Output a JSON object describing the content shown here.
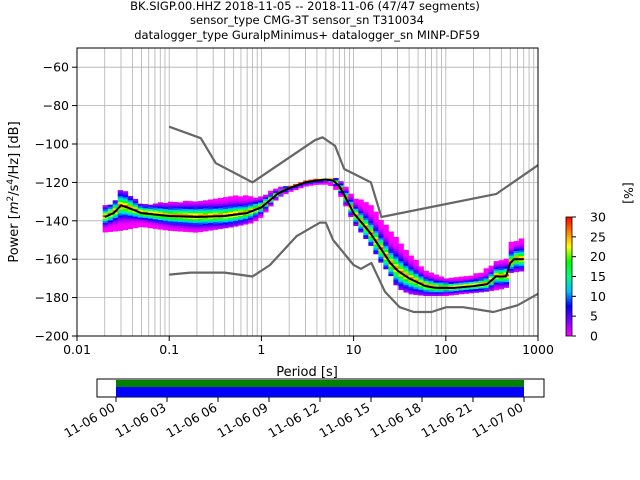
{
  "chart_data": {
    "type": "heatmap",
    "subtype": "probabilistic power spectral density",
    "title_lines": [
      "BK.SIGP.00.HHZ   2018-11-05 -- 2018-11-06  (47/47 segments)",
      "sensor_type CMG-3T sensor_sn T310034",
      "datalogger_type GuralpMinimus+ datalogger_sn MINP-DF59"
    ],
    "xlabel": "Period [s]",
    "ylabel": "Power [m²/s⁴/Hz] [dB]",
    "ylabel_parts": {
      "pre": "Power [",
      "m": "m",
      "sup2": "2",
      "mid": "/s",
      "sup4": "4",
      "post": "/Hz] [dB]"
    },
    "x_scale": "log",
    "xlim": [
      0.01,
      1000
    ],
    "ylim": [
      -200,
      -50
    ],
    "grid": true,
    "x_ticks": [
      0.01,
      0.1,
      1,
      10,
      100,
      1000
    ],
    "x_tick_labels": [
      "0.01",
      "0.1",
      "1",
      "10",
      "100",
      "1000"
    ],
    "y_ticks": [
      -60,
      -80,
      -100,
      -120,
      -140,
      -160,
      -180,
      -200
    ],
    "y_tick_labels": [
      "−60",
      "−80",
      "−100",
      "−120",
      "−140",
      "−160",
      "−180",
      "−200"
    ],
    "colorbar": {
      "label": "[%]",
      "range": [
        0,
        30
      ],
      "ticks": [
        "0",
        "5",
        "10",
        "15",
        "20",
        "25",
        "30"
      ],
      "colormap": [
        "#ff00ff",
        "#8000ff",
        "#0000ff",
        "#00bfff",
        "#00ff80",
        "#00ff00",
        "#ffff00",
        "#ff8000",
        "#ff0000"
      ]
    },
    "series": [
      {
        "name": "",
        "role": "noise model high",
        "color": "#666666",
        "points": [
          [
            0.1,
            -91
          ],
          [
            0.22,
            -97
          ],
          [
            0.32,
            -110
          ],
          [
            0.8,
            -120
          ],
          [
            3.8,
            -98
          ],
          [
            4.6,
            -96.5
          ],
          [
            6.3,
            -101
          ],
          [
            7.9,
            -113
          ],
          [
            15.4,
            -120
          ],
          [
            20,
            -138
          ],
          [
            354,
            -126
          ],
          [
            1000,
            -111
          ]
        ]
      },
      {
        "name": "",
        "role": "noise model low",
        "color": "#666666",
        "points": [
          [
            0.1,
            -168
          ],
          [
            0.17,
            -167
          ],
          [
            0.4,
            -167
          ],
          [
            0.8,
            -169
          ],
          [
            1.24,
            -163
          ],
          [
            2.4,
            -148
          ],
          [
            4.3,
            -141
          ],
          [
            5,
            -141
          ],
          [
            6,
            -150
          ],
          [
            10,
            -163
          ],
          [
            12,
            -165
          ],
          [
            15.6,
            -162
          ],
          [
            21.9,
            -177
          ],
          [
            31.6,
            -185
          ],
          [
            45,
            -187.5
          ],
          [
            70,
            -187.5
          ],
          [
            101,
            -185
          ],
          [
            154,
            -185
          ],
          [
            328,
            -187.5
          ],
          [
            600,
            -184
          ],
          [
            1000,
            -178
          ]
        ]
      },
      {
        "name": "",
        "role": "mode",
        "color": "#000000",
        "points": [
          [
            0.02,
            -138
          ],
          [
            0.025,
            -136
          ],
          [
            0.03,
            -132
          ],
          [
            0.035,
            -133
          ],
          [
            0.05,
            -136
          ],
          [
            0.1,
            -137.5
          ],
          [
            0.2,
            -138
          ],
          [
            0.4,
            -137.5
          ],
          [
            0.7,
            -136
          ],
          [
            1.0,
            -133
          ],
          [
            1.5,
            -126
          ],
          [
            2,
            -123
          ],
          [
            3,
            -120
          ],
          [
            4,
            -119
          ],
          [
            5,
            -118.5
          ],
          [
            6,
            -119
          ],
          [
            7,
            -122
          ],
          [
            8,
            -127
          ],
          [
            10,
            -136
          ],
          [
            15,
            -146
          ],
          [
            20,
            -155
          ],
          [
            25,
            -162
          ],
          [
            30,
            -166
          ],
          [
            40,
            -170
          ],
          [
            60,
            -174
          ],
          [
            80,
            -175
          ],
          [
            120,
            -175
          ],
          [
            200,
            -174
          ],
          [
            280,
            -173
          ],
          [
            350,
            -169
          ],
          [
            450,
            -169
          ],
          [
            500,
            -162
          ],
          [
            550,
            -160
          ],
          [
            700,
            -160
          ]
        ]
      }
    ],
    "density_envelope": {
      "upper": [
        [
          0.019,
          -133
        ],
        [
          0.025,
          -131
        ],
        [
          0.03,
          -124
        ],
        [
          0.035,
          -126
        ],
        [
          0.05,
          -132
        ],
        [
          0.1,
          -131
        ],
        [
          0.2,
          -130
        ],
        [
          0.3,
          -129
        ],
        [
          0.5,
          -127
        ],
        [
          0.8,
          -128
        ],
        [
          1.0,
          -128
        ],
        [
          1.5,
          -123
        ],
        [
          2,
          -122
        ],
        [
          3,
          -119
        ],
        [
          4,
          -118
        ],
        [
          5,
          -118
        ],
        [
          6,
          -118
        ],
        [
          7,
          -119
        ],
        [
          8,
          -122
        ],
        [
          10,
          -128
        ],
        [
          15,
          -132
        ],
        [
          18,
          -137
        ],
        [
          20,
          -140
        ],
        [
          30,
          -150
        ],
        [
          40,
          -158
        ],
        [
          60,
          -166
        ],
        [
          100,
          -170
        ],
        [
          150,
          -170
        ],
        [
          250,
          -167
        ],
        [
          350,
          -162
        ],
        [
          450,
          -160
        ],
        [
          500,
          -152
        ],
        [
          700,
          -149
        ]
      ],
      "lower": [
        [
          0.019,
          -146
        ],
        [
          0.03,
          -145
        ],
        [
          0.05,
          -143
        ],
        [
          0.1,
          -145
        ],
        [
          0.2,
          -146
        ],
        [
          0.5,
          -143
        ],
        [
          0.8,
          -141
        ],
        [
          1.0,
          -138
        ],
        [
          1.5,
          -128
        ],
        [
          2,
          -125
        ],
        [
          3,
          -122
        ],
        [
          4,
          -121
        ],
        [
          5,
          -121
        ],
        [
          6,
          -122
        ],
        [
          7,
          -126
        ],
        [
          8,
          -131
        ],
        [
          10,
          -141
        ],
        [
          15,
          -152
        ],
        [
          20,
          -162
        ],
        [
          25,
          -168
        ],
        [
          30,
          -175
        ],
        [
          40,
          -178
        ],
        [
          60,
          -179
        ],
        [
          100,
          -179
        ],
        [
          150,
          -178
        ],
        [
          250,
          -177
        ],
        [
          350,
          -176
        ],
        [
          450,
          -175
        ],
        [
          500,
          -167
        ],
        [
          700,
          -166
        ]
      ]
    },
    "timeline": {
      "tick_labels": [
        "11-06 00",
        "11-06 03",
        "11-06 06",
        "11-06 09",
        "11-06 12",
        "11-06 15",
        "11-06 18",
        "11-06 21",
        "11-07 00"
      ],
      "bar_colors": [
        "#008000",
        "#0000ff"
      ],
      "coverage_start": "11-06 00",
      "coverage_end": "11-07 00"
    }
  }
}
